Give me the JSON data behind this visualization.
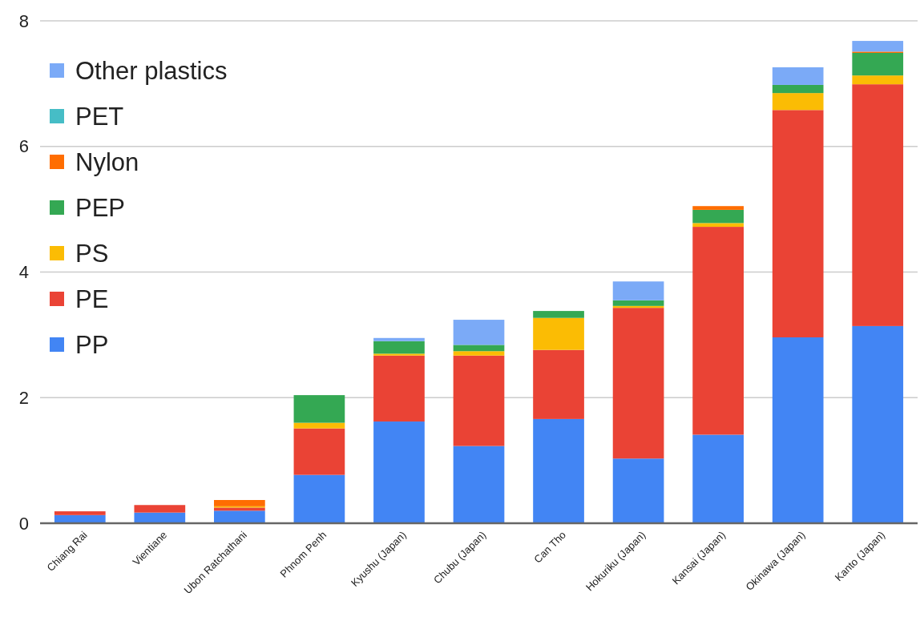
{
  "chart_data": {
    "type": "bar",
    "stacked": true,
    "categories": [
      "Chiang Rai",
      "Vientiane",
      "Ubon Ratchathani",
      "Phnom Penh",
      "Kyushu (Japan)",
      "Chubu (Japan)",
      "Can Tho",
      "Hokuriku (Japan)",
      "Kansai (Japan)",
      "Okinawa (Japan)",
      "Kanto (Japan)"
    ],
    "series": [
      {
        "name": "PP",
        "color": "#4285f4",
        "values": [
          0.13,
          0.17,
          0.2,
          0.77,
          1.62,
          1.23,
          1.66,
          1.03,
          1.41,
          2.96,
          3.14
        ]
      },
      {
        "name": "PE",
        "color": "#ea4335",
        "values": [
          0.06,
          0.12,
          0.05,
          0.74,
          1.05,
          1.44,
          1.1,
          2.4,
          3.31,
          3.62,
          3.85
        ]
      },
      {
        "name": "PS",
        "color": "#fbbc04",
        "values": [
          0,
          0,
          0.02,
          0.09,
          0.03,
          0.07,
          0.51,
          0.03,
          0.06,
          0.27,
          0.14
        ]
      },
      {
        "name": "PEP",
        "color": "#34a853",
        "values": [
          0,
          0,
          0,
          0.44,
          0.2,
          0.1,
          0.11,
          0.09,
          0.21,
          0.13,
          0.36
        ]
      },
      {
        "name": "Nylon",
        "color": "#ff6d01",
        "values": [
          0,
          0,
          0.1,
          0,
          0,
          0,
          0,
          0,
          0.06,
          0,
          0.02
        ]
      },
      {
        "name": "PET",
        "color": "#46bdc6",
        "values": [
          0,
          0,
          0,
          0,
          0,
          0,
          0,
          0,
          0,
          0,
          0
        ]
      },
      {
        "name": "Other plastics",
        "color": "#7baaf7",
        "values": [
          0,
          0,
          0,
          0,
          0.05,
          0.4,
          0,
          0.3,
          0,
          0.28,
          0.17
        ]
      }
    ],
    "ylim": [
      0,
      8
    ],
    "yticks": [
      0,
      2,
      4,
      6,
      8
    ],
    "grid": "y",
    "legend": "top left"
  }
}
